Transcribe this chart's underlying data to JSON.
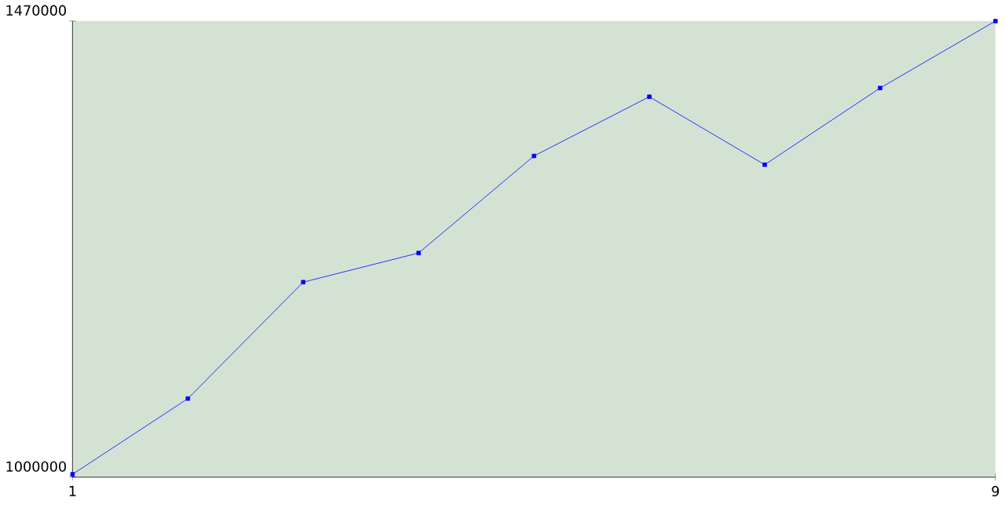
{
  "chart_data": {
    "type": "line",
    "x": [
      1,
      2,
      3,
      4,
      5,
      6,
      7,
      8,
      9
    ],
    "values": [
      1003000,
      1081000,
      1201000,
      1231000,
      1331000,
      1392000,
      1322000,
      1401000,
      1470000
    ],
    "color": "#0000ff",
    "marker": "square",
    "xlim": [
      1,
      9
    ],
    "ylim": [
      1000000,
      1470000
    ],
    "xticks": [
      1,
      9
    ],
    "yticks": [
      1000000,
      1470000
    ]
  }
}
